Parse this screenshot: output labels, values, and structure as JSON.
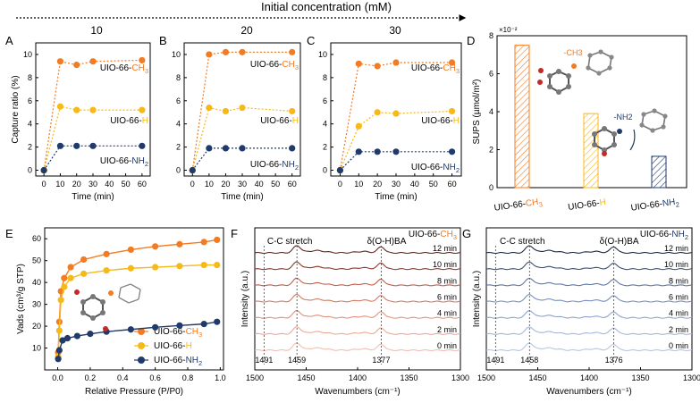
{
  "header": {
    "title": "Initial concentration (mM)",
    "concentrations": [
      "10",
      "20",
      "30"
    ]
  },
  "colors": {
    "ch3": "#F37B21",
    "h": "#F7B918",
    "nh2": "#1F3A6B",
    "axis": "#000000",
    "ftir_f": [
      "#F6D2C4",
      "#F2BFAE",
      "#ECAA96",
      "#E3927B",
      "#D77A62",
      "#C15F4A",
      "#8B3A2E",
      "#5E2A24"
    ],
    "ftir_g": [
      "#C9D3EA",
      "#B9C6E3",
      "#A5B6DA",
      "#90A4CF",
      "#7990C0",
      "#5F77A7",
      "#3D5275",
      "#1F2C42"
    ]
  },
  "panels": {
    "A": "A",
    "B": "B",
    "C": "C",
    "D": "D",
    "E": "E",
    "F": "F",
    "G": "G"
  },
  "chart_data": [
    {
      "id": "A",
      "type": "line",
      "xlabel": "Time (min)",
      "ylabel": "Capture ratio (%)",
      "x": [
        0,
        10,
        20,
        30,
        60
      ],
      "xlim": [
        -5,
        65
      ],
      "ylim": [
        -0.5,
        11
      ],
      "xticks": [
        0,
        10,
        20,
        30,
        40,
        50,
        60
      ],
      "yticks": [
        0,
        2,
        4,
        6,
        8,
        10
      ],
      "series": [
        {
          "name": "UIO-66-CH3",
          "values": [
            0,
            9.4,
            9.1,
            9.4,
            9.5
          ]
        },
        {
          "name": "UIO-66-H",
          "values": [
            0,
            5.5,
            5.2,
            5.2,
            5.2
          ]
        },
        {
          "name": "UIO-66-NH2",
          "values": [
            0,
            2.1,
            2.1,
            2.1,
            2.1
          ]
        }
      ]
    },
    {
      "id": "B",
      "type": "line",
      "xlabel": "Time (min)",
      "ylabel": "",
      "x": [
        0,
        10,
        20,
        30,
        60
      ],
      "xlim": [
        -5,
        65
      ],
      "ylim": [
        -0.5,
        11
      ],
      "xticks": [
        0,
        10,
        20,
        30,
        40,
        50,
        60
      ],
      "yticks": [
        0,
        2,
        4,
        6,
        8,
        10
      ],
      "series": [
        {
          "name": "UIO-66-CH3",
          "values": [
            0,
            10.0,
            10.2,
            10.2,
            10.2
          ]
        },
        {
          "name": "UIO-66-H",
          "values": [
            0,
            5.4,
            5.1,
            5.4,
            5.1
          ]
        },
        {
          "name": "UIO-66-NH2",
          "values": [
            0,
            1.9,
            1.9,
            1.9,
            1.9
          ]
        }
      ]
    },
    {
      "id": "C",
      "type": "line",
      "xlabel": "Time (min)",
      "ylabel": "",
      "x": [
        0,
        10,
        20,
        30,
        60
      ],
      "xlim": [
        -5,
        65
      ],
      "ylim": [
        -0.5,
        11
      ],
      "xticks": [
        0,
        10,
        20,
        30,
        40,
        50,
        60
      ],
      "yticks": [
        0,
        2,
        4,
        6,
        8,
        10
      ],
      "series": [
        {
          "name": "UIO-66-CH3",
          "values": [
            0,
            9.2,
            9.0,
            9.3,
            9.3
          ]
        },
        {
          "name": "UIO-66-H",
          "values": [
            0,
            3.8,
            5.0,
            4.9,
            5.1
          ]
        },
        {
          "name": "UIO-66-NH2",
          "values": [
            0,
            1.6,
            1.6,
            1.6,
            1.6
          ]
        }
      ]
    },
    {
      "id": "D",
      "type": "bar",
      "ylabel": "SUPS (µmol/m²)",
      "ymult": "×10⁻²",
      "categories": [
        "UIO-66-CH3",
        "UIO-66-H",
        "UIO-66-NH2"
      ],
      "values": [
        7.5,
        3.9,
        1.65
      ],
      "ylim": [
        0,
        8
      ],
      "yticks": [
        0,
        2,
        4,
        6,
        8
      ],
      "annotations": [
        "-CH3",
        "-NH2"
      ]
    },
    {
      "id": "E",
      "type": "line",
      "xlabel": "Relative Pressure (P/P0)",
      "ylabel": "Vads (cm³/g STP)",
      "xlim": [
        -0.08,
        1.02
      ],
      "ylim": [
        0,
        65
      ],
      "xticks": [
        0.0,
        0.2,
        0.4,
        0.6,
        0.8,
        1.0
      ],
      "yticks": [
        10,
        20,
        30,
        40,
        50,
        60
      ],
      "series": [
        {
          "name": "UIO-66-CH3",
          "x": [
            0.003,
            0.01,
            0.02,
            0.04,
            0.08,
            0.16,
            0.3,
            0.45,
            0.6,
            0.75,
            0.9,
            0.98
          ],
          "values": [
            8,
            22,
            36,
            42,
            47,
            50.5,
            53,
            55,
            56.5,
            57.5,
            58.5,
            59.5
          ]
        },
        {
          "name": "UIO-66-H",
          "x": [
            0.003,
            0.01,
            0.02,
            0.04,
            0.08,
            0.16,
            0.3,
            0.45,
            0.6,
            0.75,
            0.9,
            0.98
          ],
          "values": [
            6,
            18,
            32,
            38,
            42,
            44,
            45.5,
            46.5,
            47,
            47.5,
            48,
            48
          ]
        },
        {
          "name": "UIO-66-NH2",
          "x": [
            0.003,
            0.01,
            0.03,
            0.06,
            0.12,
            0.2,
            0.3,
            0.45,
            0.6,
            0.75,
            0.9,
            0.98
          ],
          "values": [
            5,
            9,
            13.5,
            14.5,
            15.5,
            16.5,
            17.5,
            18.5,
            19.5,
            20.3,
            21,
            22
          ]
        }
      ]
    },
    {
      "id": "F",
      "type": "line",
      "title": "UIO-66-CH3",
      "xlabel": "Wavenumbers (cm⁻¹)",
      "ylabel": "Intensity (a.u.)",
      "xlim": [
        1500,
        1300
      ],
      "xticks": [
        1500,
        1450,
        1400,
        1350,
        1300
      ],
      "series_labels": [
        "0 min",
        "2 min",
        "4 min",
        "6 min",
        "8 min",
        "10 min",
        "12 min"
      ],
      "peaks": [
        "1491",
        "1459",
        "1377"
      ],
      "annotations": [
        "C-C stretch",
        "δ(O-H)BA"
      ]
    },
    {
      "id": "G",
      "type": "line",
      "title": "UIO-66-NH2",
      "xlabel": "Wavenumbers (cm⁻¹)",
      "ylabel": "Intensity (a.u.)",
      "xlim": [
        1500,
        1300
      ],
      "xticks": [
        1500,
        1450,
        1400,
        1350,
        1300
      ],
      "series_labels": [
        "0 min",
        "2 min",
        "4 min",
        "6 min",
        "8 min",
        "10 min",
        "12 min"
      ],
      "peaks": [
        "1491",
        "1458",
        "1376"
      ],
      "annotations": [
        "C-C stretch",
        "δ(O-H)BA"
      ]
    }
  ],
  "labels": {
    "ch3": {
      "base": "UIO-66-",
      "sub": "CH",
      "num": "3"
    },
    "h": {
      "base": "UIO-66-",
      "sub": "H"
    },
    "nh2": {
      "base": "UIO-66-",
      "sub": "NH",
      "num": "2"
    },
    "d_ch3_ann": "-CH3",
    "d_nh2_ann": "-NH2",
    "e_ylabel_main": "V",
    "e_ylabel_sub": "ads",
    "e_ylabel_rest": " (cm³/g STP)",
    "e_xlabel": "Relative Pressure (P/P0)"
  }
}
